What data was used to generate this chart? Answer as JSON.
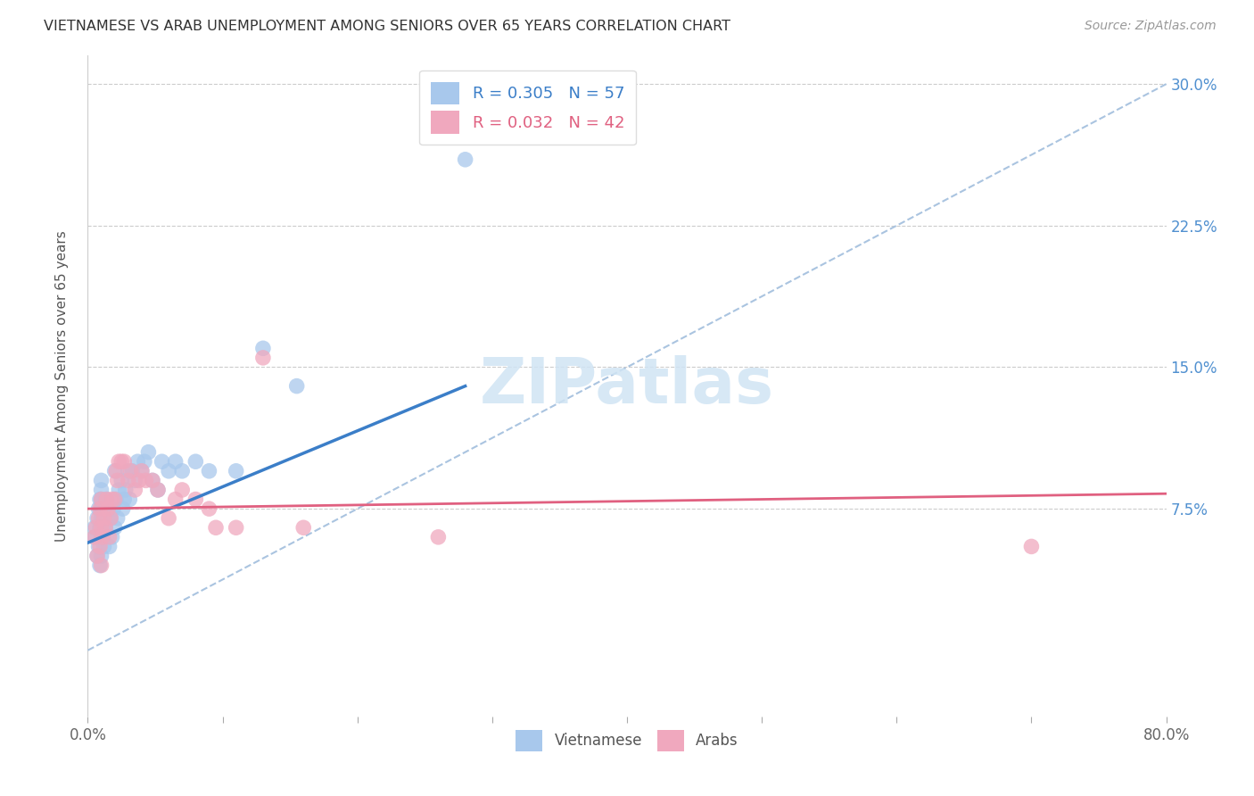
{
  "title": "VIETNAMESE VS ARAB UNEMPLOYMENT AMONG SENIORS OVER 65 YEARS CORRELATION CHART",
  "source": "Source: ZipAtlas.com",
  "ylabel": "Unemployment Among Seniors over 65 years",
  "xlim": [
    0.0,
    0.8
  ],
  "ylim": [
    -0.035,
    0.315
  ],
  "vietnamese_R": 0.305,
  "vietnamese_N": 57,
  "arab_R": 0.032,
  "arab_N": 42,
  "vietnamese_color": "#a8c8ec",
  "arab_color": "#f0a8be",
  "viet_line_color": "#3b7ec8",
  "arab_line_color": "#e06080",
  "dashed_line_color": "#aac4e0",
  "right_tick_color": "#5090d0",
  "background_color": "#ffffff",
  "viet_x": [
    0.005,
    0.005,
    0.007,
    0.007,
    0.008,
    0.008,
    0.009,
    0.009,
    0.009,
    0.01,
    0.01,
    0.01,
    0.01,
    0.01,
    0.01,
    0.01,
    0.01,
    0.011,
    0.011,
    0.012,
    0.012,
    0.013,
    0.014,
    0.015,
    0.016,
    0.017,
    0.018,
    0.019,
    0.02,
    0.02,
    0.021,
    0.022,
    0.023,
    0.025,
    0.026,
    0.027,
    0.028,
    0.03,
    0.031,
    0.033,
    0.035,
    0.037,
    0.04,
    0.042,
    0.045,
    0.048,
    0.052,
    0.055,
    0.06,
    0.065,
    0.07,
    0.08,
    0.09,
    0.11,
    0.13,
    0.155,
    0.28
  ],
  "viet_y": [
    0.06,
    0.065,
    0.05,
    0.07,
    0.055,
    0.075,
    0.045,
    0.065,
    0.08,
    0.05,
    0.06,
    0.065,
    0.07,
    0.075,
    0.08,
    0.085,
    0.09,
    0.06,
    0.075,
    0.055,
    0.07,
    0.065,
    0.08,
    0.075,
    0.055,
    0.07,
    0.06,
    0.075,
    0.065,
    0.095,
    0.08,
    0.07,
    0.085,
    0.09,
    0.075,
    0.08,
    0.085,
    0.095,
    0.08,
    0.095,
    0.09,
    0.1,
    0.095,
    0.1,
    0.105,
    0.09,
    0.085,
    0.1,
    0.095,
    0.1,
    0.095,
    0.1,
    0.095,
    0.095,
    0.16,
    0.14,
    0.26
  ],
  "arab_x": [
    0.005,
    0.006,
    0.007,
    0.008,
    0.009,
    0.009,
    0.01,
    0.01,
    0.01,
    0.011,
    0.012,
    0.013,
    0.014,
    0.015,
    0.016,
    0.017,
    0.018,
    0.02,
    0.021,
    0.022,
    0.023,
    0.025,
    0.027,
    0.03,
    0.032,
    0.035,
    0.038,
    0.04,
    0.043,
    0.048,
    0.052,
    0.06,
    0.065,
    0.07,
    0.08,
    0.09,
    0.095,
    0.11,
    0.13,
    0.16,
    0.26,
    0.7
  ],
  "arab_y": [
    0.06,
    0.065,
    0.05,
    0.07,
    0.055,
    0.075,
    0.045,
    0.065,
    0.08,
    0.06,
    0.07,
    0.065,
    0.08,
    0.075,
    0.06,
    0.07,
    0.08,
    0.08,
    0.095,
    0.09,
    0.1,
    0.1,
    0.1,
    0.09,
    0.095,
    0.085,
    0.09,
    0.095,
    0.09,
    0.09,
    0.085,
    0.07,
    0.08,
    0.085,
    0.08,
    0.075,
    0.065,
    0.065,
    0.155,
    0.065,
    0.06,
    0.055
  ],
  "viet_trendline_x": [
    0.0,
    0.28
  ],
  "viet_trendline_y": [
    0.057,
    0.14
  ],
  "arab_trendline_x": [
    0.0,
    0.8
  ],
  "arab_trendline_y": [
    0.075,
    0.083
  ],
  "diag_line_x": [
    0.0,
    0.8
  ],
  "diag_line_y": [
    0.0,
    0.3
  ],
  "ytick_vals": [
    0.075,
    0.15,
    0.225,
    0.3
  ],
  "ytick_labels": [
    "7.5%",
    "15.0%",
    "22.5%",
    "30.0%"
  ],
  "xtick_vals": [
    0.0,
    0.1,
    0.2,
    0.3,
    0.4,
    0.5,
    0.6,
    0.7,
    0.8
  ],
  "xtick_labels": [
    "0.0%",
    "",
    "",
    "",
    "",
    "",
    "",
    "",
    "80.0%"
  ]
}
